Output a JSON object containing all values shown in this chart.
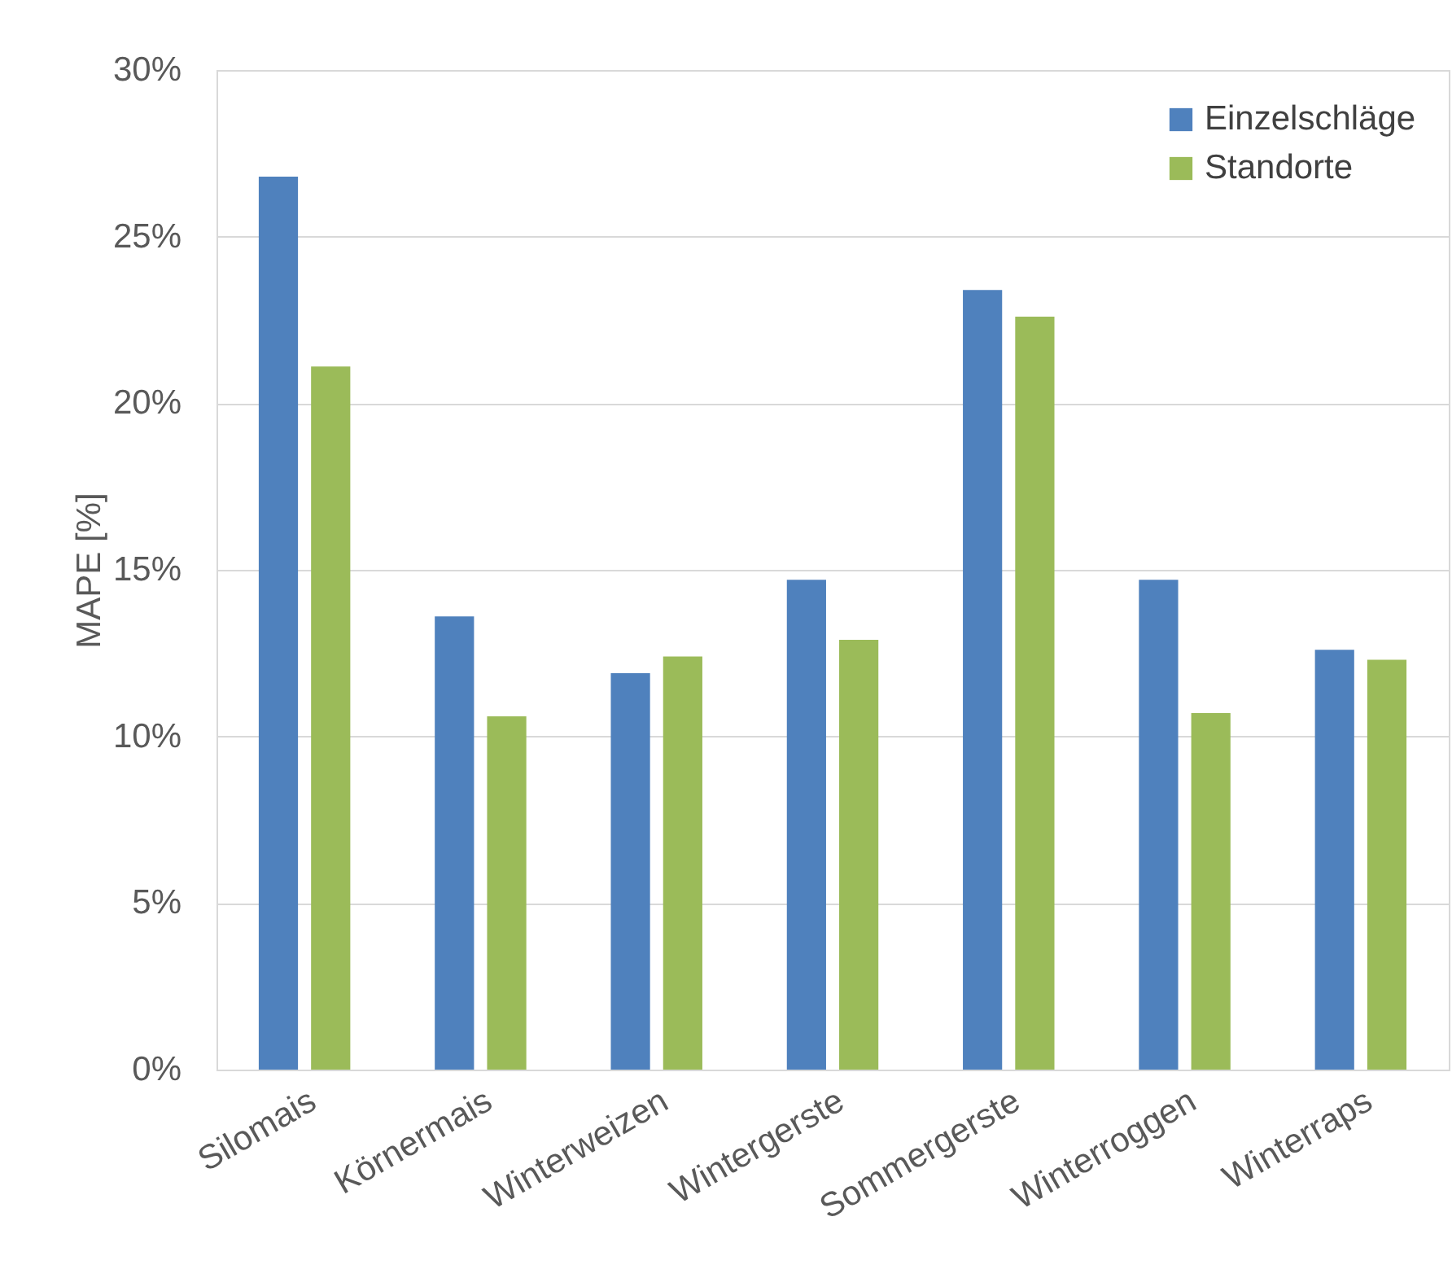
{
  "chart_data": {
    "type": "bar",
    "ylabel": "MAPE [%]",
    "categories": [
      "Silomais",
      "Körnermais",
      "Winterweizen",
      "Wintergerste",
      "Sommergerste",
      "Winterroggen",
      "Winterraps"
    ],
    "series": [
      {
        "name": "Einzelschläge",
        "color": "#4f81bd",
        "values": [
          26.8,
          13.6,
          11.9,
          14.7,
          23.4,
          14.7,
          12.6
        ]
      },
      {
        "name": "Standorte",
        "color": "#9bbb59",
        "values": [
          21.1,
          10.6,
          12.4,
          12.9,
          22.6,
          10.7,
          12.3
        ]
      }
    ],
    "ylim": [
      0,
      30
    ],
    "yticks": [
      {
        "value": 0,
        "label": "0%"
      },
      {
        "value": 5,
        "label": "5%"
      },
      {
        "value": 10,
        "label": "10%"
      },
      {
        "value": 15,
        "label": "15%"
      },
      {
        "value": 20,
        "label": "20%"
      },
      {
        "value": 25,
        "label": "25%"
      },
      {
        "value": 30,
        "label": "30%"
      }
    ],
    "grid": "y",
    "legend": "top right"
  }
}
